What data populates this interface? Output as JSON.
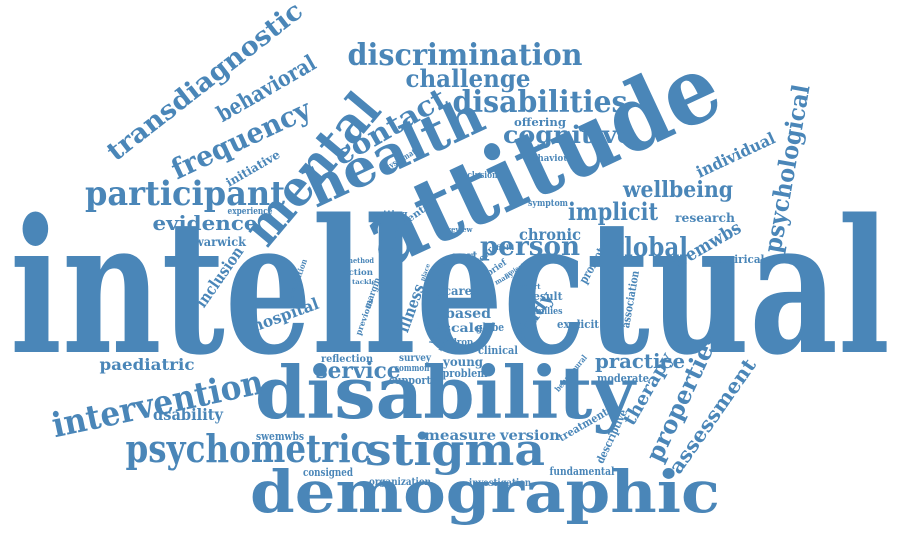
{
  "colors": {
    "text": "#4a86b8",
    "background": "#ffffff"
  },
  "words": [
    {
      "text": "intellectual"
    },
    {
      "text": "attitude"
    },
    {
      "text": "disability"
    },
    {
      "text": "demographic"
    },
    {
      "text": "health"
    },
    {
      "text": "mental"
    },
    {
      "text": "stigma"
    },
    {
      "text": "psychometric"
    },
    {
      "text": "participant"
    },
    {
      "text": "intervention"
    },
    {
      "text": "discrimination"
    },
    {
      "text": "disabilities"
    },
    {
      "text": "transdiagnostic"
    },
    {
      "text": "contact"
    },
    {
      "text": "frequency"
    },
    {
      "text": "challenge"
    },
    {
      "text": "cognitive"
    },
    {
      "text": "behavioral"
    },
    {
      "text": "wellbeing"
    },
    {
      "text": "implicit"
    },
    {
      "text": "person"
    },
    {
      "text": "global"
    },
    {
      "text": "psychological"
    },
    {
      "text": "properties"
    },
    {
      "text": "assessment"
    },
    {
      "text": "evidence"
    },
    {
      "text": "practice"
    },
    {
      "text": "service"
    },
    {
      "text": "therapy"
    },
    {
      "text": "individual"
    },
    {
      "text": "wemwbs"
    },
    {
      "text": "hospital"
    },
    {
      "text": "paediatric"
    },
    {
      "text": "dsability"
    },
    {
      "text": "inclusion"
    },
    {
      "text": "measure"
    },
    {
      "text": "version"
    },
    {
      "text": "chronic"
    },
    {
      "text": "study"
    },
    {
      "text": "illness"
    },
    {
      "text": "based"
    },
    {
      "text": "scale"
    },
    {
      "text": "initiative"
    },
    {
      "text": "research"
    },
    {
      "text": "warwick"
    },
    {
      "text": "empirical"
    },
    {
      "text": "offering"
    },
    {
      "text": "behaviour"
    },
    {
      "text": "conclusion"
    },
    {
      "text": "systematic"
    },
    {
      "text": "experience"
    },
    {
      "text": "setting"
    },
    {
      "text": "centre"
    },
    {
      "text": "symptom"
    },
    {
      "text": "review"
    },
    {
      "text": "promote"
    },
    {
      "text": "association"
    },
    {
      "text": "part"
    },
    {
      "text": "care"
    },
    {
      "text": "result"
    },
    {
      "text": "families"
    },
    {
      "text": "explicit"
    },
    {
      "text": "clinical"
    },
    {
      "text": "young"
    },
    {
      "text": "problem"
    },
    {
      "text": "survey"
    },
    {
      "text": "common"
    },
    {
      "text": "support"
    },
    {
      "text": "reflection"
    },
    {
      "text": "action"
    },
    {
      "text": "moderate"
    },
    {
      "text": "behavioural"
    },
    {
      "text": "treatment"
    },
    {
      "text": "descriptive"
    },
    {
      "text": "fundamental"
    },
    {
      "text": "investigation"
    },
    {
      "text": "organization"
    },
    {
      "text": "consigned"
    },
    {
      "text": "swemwbs"
    },
    {
      "text": "evaluation"
    },
    {
      "text": "margin"
    },
    {
      "text": "previous"
    },
    {
      "text": "globe"
    },
    {
      "text": "drop"
    },
    {
      "text": "brief"
    },
    {
      "text": "year"
    },
    {
      "text": "field"
    },
    {
      "text": "many"
    },
    {
      "text": "project"
    },
    {
      "text": "method"
    },
    {
      "text": "tackle"
    },
    {
      "text": "world"
    },
    {
      "text": "range"
    },
    {
      "text": "role"
    },
    {
      "text": "adult"
    },
    {
      "text": "expert"
    },
    {
      "text": "place"
    }
  ]
}
